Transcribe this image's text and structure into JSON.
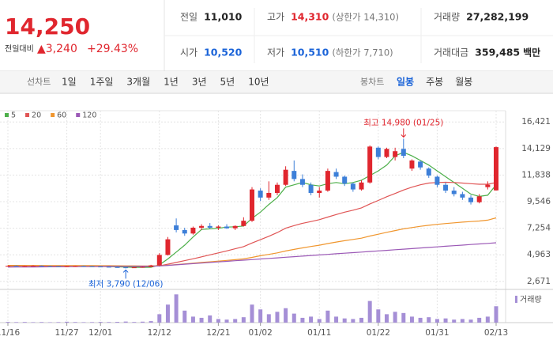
{
  "header": {
    "price": "14,250",
    "change_label": "전일대비",
    "change": "▲3,240",
    "change_rate": "+29.43%",
    "stats": [
      {
        "label": "전일",
        "value": "11,010",
        "color": "#222222"
      },
      {
        "label": "고가",
        "value": "14,310",
        "note": "(상한가 14,310)",
        "color": "#e0262e"
      },
      {
        "label": "거래량",
        "value": "27,282,199",
        "color": "#222222"
      },
      {
        "label": "시가",
        "value": "10,520",
        "color": "#1a63d8"
      },
      {
        "label": "저가",
        "value": "10,510",
        "note": "(하한가 7,710)",
        "color": "#1a63d8"
      },
      {
        "label": "거래대금",
        "value": "359,485",
        "unit": "백만",
        "color": "#222222"
      }
    ]
  },
  "tabs": {
    "line_label": "선차트",
    "line_periods": [
      "1일",
      "1주일",
      "3개월",
      "1년",
      "3년",
      "5년",
      "10년"
    ],
    "candle_label": "봉차트",
    "candle_periods": [
      "일봉",
      "주봉",
      "월봉"
    ],
    "candle_selected_index": 0
  },
  "chart_data": {
    "type": "candlestick",
    "categories": [
      "11/16",
      null,
      null,
      null,
      null,
      null,
      null,
      "11/27",
      null,
      null,
      null,
      "12/01",
      null,
      null,
      null,
      null,
      null,
      null,
      "12/12",
      null,
      null,
      null,
      null,
      null,
      null,
      "12/21",
      null,
      null,
      null,
      null,
      "01/02",
      null,
      null,
      null,
      null,
      null,
      null,
      "01/11",
      null,
      null,
      null,
      null,
      null,
      null,
      "01/22",
      null,
      null,
      null,
      null,
      null,
      null,
      "01/31",
      null,
      null,
      null,
      null,
      null,
      null,
      "02/13"
    ],
    "open": [
      4000,
      4010,
      3990,
      4000,
      4020,
      3980,
      3970,
      3960,
      3980,
      4000,
      3970,
      3950,
      3930,
      3900,
      3880,
      3850,
      3880,
      3920,
      4050,
      4950,
      7500,
      7100,
      6800,
      7300,
      7450,
      7300,
      7400,
      7250,
      7450,
      7900,
      10500,
      9900,
      10300,
      11000,
      12200,
      11500,
      11000,
      10300,
      10500,
      12100,
      11700,
      11100,
      10600,
      11200,
      14200,
      13400,
      13400,
      14100,
      12400,
      13000,
      12400,
      11700,
      11000,
      10500,
      10200,
      9900,
      9500,
      10800,
      10520
    ],
    "high": [
      4050,
      4040,
      4030,
      4060,
      4040,
      4010,
      4000,
      4000,
      4020,
      4030,
      4000,
      3990,
      3960,
      3950,
      3920,
      3900,
      3950,
      4100,
      5100,
      6500,
      8100,
      7300,
      7400,
      7600,
      7700,
      7500,
      7600,
      7500,
      8200,
      10800,
      10700,
      11300,
      11200,
      12600,
      13100,
      11900,
      11200,
      10800,
      12400,
      12400,
      11800,
      11200,
      11400,
      14400,
      14300,
      14200,
      14200,
      14980,
      13200,
      13100,
      12500,
      11800,
      11200,
      10800,
      10400,
      10100,
      10200,
      11300,
      14310
    ],
    "low": [
      3960,
      3970,
      3950,
      3980,
      3960,
      3940,
      3930,
      3920,
      3950,
      3960,
      3930,
      3900,
      3880,
      3850,
      3790,
      3820,
      3850,
      3900,
      4000,
      4900,
      6900,
      6600,
      6700,
      7100,
      7200,
      7100,
      7200,
      7100,
      7400,
      7800,
      9600,
      9700,
      10100,
      10900,
      11300,
      10800,
      10100,
      9900,
      10400,
      11500,
      10900,
      10400,
      10500,
      11100,
      13200,
      13300,
      13100,
      13300,
      12200,
      12300,
      11600,
      10800,
      10300,
      10000,
      9700,
      9300,
      9400,
      10600,
      10510
    ],
    "close": [
      4010,
      3990,
      4000,
      4020,
      3980,
      3970,
      3960,
      3980,
      4000,
      3970,
      3950,
      3930,
      3900,
      3880,
      3850,
      3880,
      3920,
      4050,
      4950,
      6300,
      7100,
      6800,
      7300,
      7450,
      7300,
      7400,
      7250,
      7450,
      7900,
      10600,
      9900,
      10300,
      11000,
      12300,
      11500,
      11000,
      10300,
      10500,
      12200,
      11700,
      11100,
      10600,
      11200,
      14300,
      13400,
      14100,
      13900,
      13500,
      13100,
      12500,
      11800,
      11000,
      10500,
      10200,
      9900,
      9500,
      10000,
      11010,
      14250
    ],
    "up_color": "#e0262e",
    "down_color": "#3d7fd8",
    "ylim": [
      1977,
      17393
    ],
    "yticks": [
      {
        "value": 16421,
        "label": "16,421"
      },
      {
        "value": 14129,
        "label": "14,129"
      },
      {
        "value": 11838,
        "label": "11,838"
      },
      {
        "value": 9546,
        "label": "9,546"
      },
      {
        "value": 7254,
        "label": "7,254"
      },
      {
        "value": 4963,
        "label": "4,963"
      },
      {
        "value": 2671,
        "label": "2,671"
      }
    ],
    "grid": true,
    "series": [
      {
        "name": "5",
        "color": "#4daf4a",
        "values": [
          3990,
          3995,
          4000,
          4000,
          4005,
          3995,
          3985,
          3980,
          3980,
          3985,
          3975,
          3965,
          3950,
          3930,
          3900,
          3880,
          3880,
          3890,
          4100,
          4600,
          5200,
          5800,
          6500,
          7150,
          7200,
          7250,
          7350,
          7380,
          7450,
          8100,
          8650,
          9300,
          9900,
          10800,
          11000,
          11200,
          11000,
          10900,
          11100,
          11200,
          11100,
          11200,
          11400,
          11800,
          12200,
          12700,
          13500,
          13800,
          13500,
          13100,
          12700,
          12200,
          11700,
          11200,
          10700,
          10200,
          10000,
          10100,
          11000
        ]
      },
      {
        "name": "20",
        "color": "#e05555",
        "values": [
          4000,
          4000,
          3998,
          3995,
          3995,
          3992,
          3990,
          3988,
          3985,
          3985,
          3982,
          3980,
          3975,
          3970,
          3965,
          3960,
          3958,
          3960,
          4010,
          4150,
          4300,
          4460,
          4620,
          4790,
          4960,
          5130,
          5300,
          5480,
          5670,
          5980,
          6270,
          6560,
          6880,
          7260,
          7480,
          7680,
          7830,
          7990,
          8220,
          8440,
          8640,
          8810,
          9010,
          9350,
          9650,
          9970,
          10250,
          10550,
          10800,
          11000,
          11150,
          11200,
          11220,
          11200,
          11150,
          11100,
          11050,
          11050,
          11200
        ]
      },
      {
        "name": "60",
        "color": "#f0962e",
        "values": [
          4050,
          4048,
          4046,
          4044,
          4042,
          4040,
          4038,
          4035,
          4032,
          4030,
          4027,
          4024,
          4020,
          4016,
          4012,
          4008,
          4004,
          4000,
          4020,
          4060,
          4120,
          4180,
          4240,
          4300,
          4360,
          4420,
          4480,
          4540,
          4610,
          4740,
          4880,
          5000,
          5130,
          5290,
          5430,
          5560,
          5680,
          5790,
          5930,
          6060,
          6180,
          6290,
          6400,
          6580,
          6740,
          6900,
          7050,
          7200,
          7310,
          7420,
          7510,
          7590,
          7660,
          7720,
          7780,
          7830,
          7880,
          7950,
          8150
        ]
      },
      {
        "name": "120",
        "color": "#9b59b6",
        "values": [
          3900,
          3905,
          3910,
          3915,
          3920,
          3925,
          3930,
          3935,
          3940,
          3945,
          3950,
          3955,
          3960,
          3965,
          3970,
          3975,
          3980,
          3985,
          4000,
          4050,
          4100,
          4150,
          4200,
          4250,
          4300,
          4350,
          4400,
          4450,
          4500,
          4550,
          4600,
          4650,
          4700,
          4750,
          4800,
          4850,
          4900,
          4950,
          5000,
          5050,
          5100,
          5150,
          5200,
          5250,
          5300,
          5350,
          5400,
          5450,
          5500,
          5550,
          5600,
          5650,
          5700,
          5750,
          5800,
          5850,
          5900,
          5950,
          6000
        ]
      }
    ],
    "volume": {
      "name": "거래량",
      "color": "#a58fd6",
      "values": [
        1200000,
        900000,
        1100000,
        800000,
        1000000,
        700000,
        900000,
        1500000,
        1000000,
        800000,
        900000,
        1200000,
        1000000,
        1300000,
        1800000,
        1100000,
        1600000,
        2500000,
        14000000,
        30000000,
        47000000,
        20000000,
        10000000,
        8000000,
        12000000,
        6000000,
        5000000,
        6000000,
        9000000,
        30000000,
        22000000,
        14000000,
        18000000,
        24000000,
        15000000,
        8000000,
        10000000,
        6000000,
        20000000,
        10000000,
        7000000,
        6000000,
        8000000,
        36000000,
        22000000,
        14000000,
        18000000,
        16000000,
        10000000,
        8000000,
        9000000,
        6000000,
        7000000,
        5000000,
        6000000,
        5000000,
        8000000,
        10000000,
        27282199
      ]
    },
    "volume_lim": [
      0,
      50000000
    ],
    "annotations": {
      "high": "최고 14,980 (01/25)",
      "low": "최저 3,790 (12/06)"
    }
  }
}
